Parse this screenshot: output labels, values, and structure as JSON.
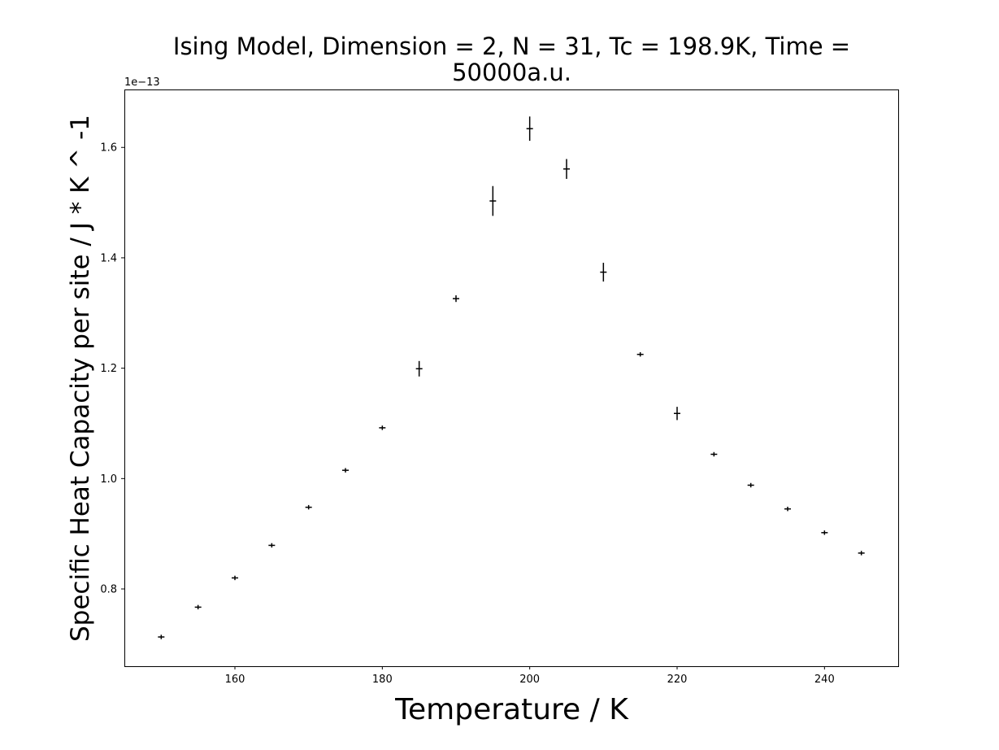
{
  "chart_data": {
    "type": "scatter",
    "title_lines": [
      "Ising Model, Dimension = 2, N = 31, Tc = 198.9K, Time =",
      "50000a.u."
    ],
    "xlabel": "Temperature / K",
    "ylabel": "Specific Heat Capacity per site / J * K ^ -1",
    "y_offset_label": "1e−13",
    "xlim": [
      145,
      250
    ],
    "ylim": [
      0.66,
      1.705
    ],
    "x_ticks": [
      160,
      180,
      200,
      220,
      240
    ],
    "x_tick_labels": [
      "160",
      "180",
      "200",
      "220",
      "240"
    ],
    "y_ticks": [
      0.8,
      1.0,
      1.2,
      1.4,
      1.6
    ],
    "y_tick_labels": [
      "0.8",
      "1.0",
      "1.2",
      "1.4",
      "1.6"
    ],
    "grid": false,
    "marker": "+",
    "color": "#000000",
    "series": [
      {
        "x": [
          150,
          155,
          160,
          165,
          170,
          175,
          180,
          185,
          190,
          195,
          200,
          205,
          210,
          215,
          220,
          225,
          230,
          235,
          240,
          245
        ],
        "y": [
          0.713,
          0.767,
          0.82,
          0.879,
          0.948,
          1.015,
          1.092,
          1.199,
          1.326,
          1.503,
          1.634,
          1.561,
          1.374,
          1.225,
          1.118,
          1.044,
          0.988,
          0.945,
          0.902,
          0.865
        ],
        "yerr": [
          0.004,
          0.004,
          0.004,
          0.004,
          0.004,
          0.004,
          0.004,
          0.014,
          0.006,
          0.027,
          0.022,
          0.018,
          0.017,
          0.004,
          0.012,
          0.004,
          0.004,
          0.004,
          0.004,
          0.004
        ]
      }
    ]
  }
}
